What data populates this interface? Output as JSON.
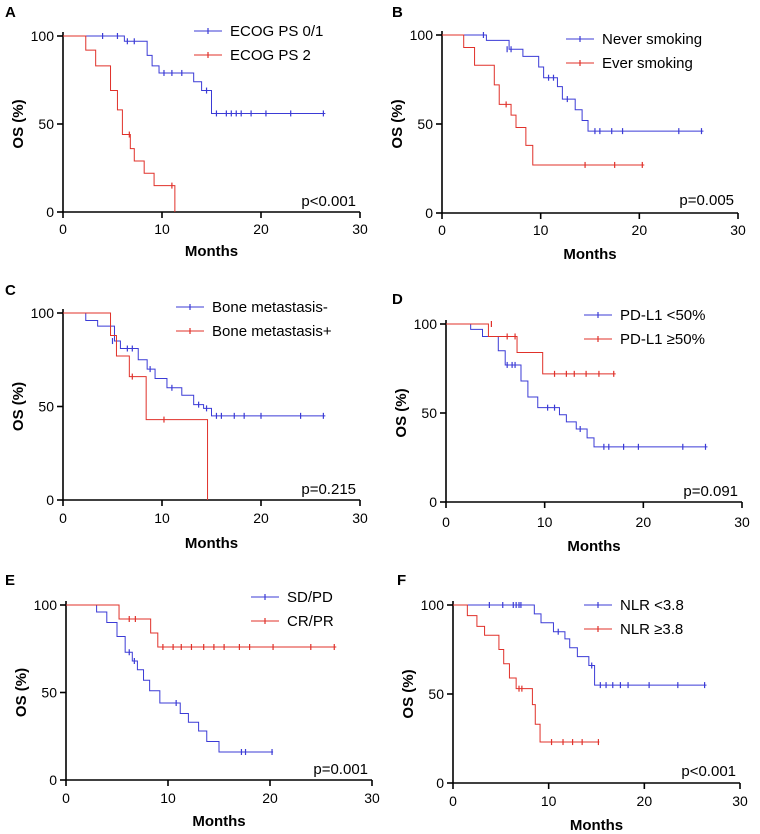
{
  "colors": {
    "blue": "#3b3bd6",
    "red": "#e0312a",
    "axis": "#000000"
  },
  "chart_data": [
    {
      "type": "line",
      "panel": "A",
      "title": "",
      "xlabel": "Months",
      "ylabel": "OS (%)",
      "xlim": [
        0,
        30
      ],
      "ylim": [
        0,
        100
      ],
      "xticks": [
        "0",
        "10",
        "20",
        "30"
      ],
      "yticks": [
        "0",
        "50",
        "100"
      ],
      "p_value": "p<0.001",
      "series": [
        {
          "name": "ECOG PS 0/1",
          "color": "blue",
          "steps": [
            [
              0,
              100
            ],
            [
              6.2,
              97
            ],
            [
              8.5,
              89
            ],
            [
              9,
              83
            ],
            [
              9.7,
              79
            ],
            [
              13.2,
              74
            ],
            [
              14,
              69
            ],
            [
              15,
              56
            ],
            [
              26.5,
              56
            ]
          ],
          "censors": [
            [
              4,
              100
            ],
            [
              5.5,
              100
            ],
            [
              6.5,
              97
            ],
            [
              7.2,
              97
            ],
            [
              10.2,
              79
            ],
            [
              11,
              79
            ],
            [
              12,
              79
            ],
            [
              14.5,
              69
            ],
            [
              15.5,
              56
            ],
            [
              16.5,
              56
            ],
            [
              17,
              56
            ],
            [
              17.5,
              56
            ],
            [
              18,
              56
            ],
            [
              19,
              56
            ],
            [
              20.5,
              56
            ],
            [
              23,
              56
            ],
            [
              26.3,
              56
            ]
          ]
        },
        {
          "name": "ECOG PS 2",
          "color": "red",
          "steps": [
            [
              0,
              100
            ],
            [
              2.3,
              92
            ],
            [
              3.3,
              83
            ],
            [
              4.8,
              69
            ],
            [
              5.5,
              58
            ],
            [
              6,
              44
            ],
            [
              6.8,
              36
            ],
            [
              7.2,
              29
            ],
            [
              8.2,
              22
            ],
            [
              9.2,
              15
            ],
            [
              11.3,
              0
            ]
          ],
          "censors": [
            [
              6.7,
              44
            ],
            [
              11,
              15
            ]
          ]
        }
      ]
    },
    {
      "type": "line",
      "panel": "B",
      "title": "",
      "xlabel": "Months",
      "ylabel": "OS (%)",
      "xlim": [
        0,
        30
      ],
      "ylim": [
        0,
        100
      ],
      "xticks": [
        "0",
        "10",
        "20",
        "30"
      ],
      "yticks": [
        "0",
        "50",
        "100"
      ],
      "p_value": "p=0.005",
      "series": [
        {
          "name": "Never smoking",
          "color": "blue",
          "steps": [
            [
              0,
              100
            ],
            [
              4.5,
              97
            ],
            [
              6.8,
              92
            ],
            [
              8.2,
              88
            ],
            [
              9.8,
              82
            ],
            [
              10.3,
              76
            ],
            [
              11.7,
              71
            ],
            [
              12.2,
              64
            ],
            [
              13.5,
              58
            ],
            [
              14.2,
              52
            ],
            [
              14.8,
              46
            ],
            [
              26.5,
              46
            ]
          ],
          "censors": [
            [
              4.2,
              100
            ],
            [
              6.6,
              92
            ],
            [
              7,
              92
            ],
            [
              10.8,
              76
            ],
            [
              11.3,
              76
            ],
            [
              12.7,
              64
            ],
            [
              15.5,
              46
            ],
            [
              16,
              46
            ],
            [
              17.2,
              46
            ],
            [
              18.3,
              46
            ],
            [
              24,
              46
            ],
            [
              26.3,
              46
            ]
          ]
        },
        {
          "name": "Ever smoking",
          "color": "red",
          "steps": [
            [
              0,
              100
            ],
            [
              2.2,
              93
            ],
            [
              3.3,
              83
            ],
            [
              5.3,
              72
            ],
            [
              5.8,
              61
            ],
            [
              7,
              55
            ],
            [
              7.5,
              48
            ],
            [
              8.5,
              38
            ],
            [
              9.2,
              27
            ],
            [
              20.5,
              27
            ]
          ],
          "censors": [
            [
              6.5,
              61
            ],
            [
              14.5,
              27
            ],
            [
              17.5,
              27
            ],
            [
              20.3,
              27
            ]
          ]
        }
      ]
    },
    {
      "type": "line",
      "panel": "C",
      "title": "",
      "xlabel": "Months",
      "ylabel": "OS (%)",
      "xlim": [
        0,
        30
      ],
      "ylim": [
        0,
        100
      ],
      "xticks": [
        "0",
        "10",
        "20",
        "30"
      ],
      "yticks": [
        "0",
        "50",
        "100"
      ],
      "p_value": "p=0.215",
      "series": [
        {
          "name": "Bone metastasis-",
          "color": "blue",
          "steps": [
            [
              0,
              100
            ],
            [
              2.3,
              96
            ],
            [
              3.5,
              93
            ],
            [
              5.2,
              85
            ],
            [
              5.8,
              81
            ],
            [
              7.6,
              75
            ],
            [
              8.5,
              70
            ],
            [
              9.3,
              65
            ],
            [
              10.5,
              60
            ],
            [
              12,
              56
            ],
            [
              13.2,
              51
            ],
            [
              14.2,
              49
            ],
            [
              15,
              45
            ],
            [
              26.5,
              45
            ]
          ],
          "censors": [
            [
              5,
              85
            ],
            [
              6.5,
              81
            ],
            [
              7,
              81
            ],
            [
              8.8,
              70
            ],
            [
              11,
              60
            ],
            [
              13.7,
              51
            ],
            [
              14.5,
              49
            ],
            [
              15.5,
              45
            ],
            [
              16,
              45
            ],
            [
              17.3,
              45
            ],
            [
              18.3,
              45
            ],
            [
              20,
              45
            ],
            [
              24,
              45
            ],
            [
              26.3,
              45
            ]
          ]
        },
        {
          "name": "Bone metastasis+",
          "color": "red",
          "steps": [
            [
              0,
              100
            ],
            [
              4.8,
              88
            ],
            [
              5.4,
              77
            ],
            [
              6.7,
              66
            ],
            [
              8.4,
              43
            ],
            [
              14.6,
              0
            ]
          ],
          "censors": [
            [
              7,
              66
            ],
            [
              10.2,
              43
            ]
          ]
        }
      ]
    },
    {
      "type": "line",
      "panel": "D",
      "title": "",
      "xlabel": "Months",
      "ylabel": "OS (%)",
      "xlim": [
        0,
        30
      ],
      "ylim": [
        0,
        100
      ],
      "xticks": [
        "0",
        "10",
        "20",
        "30"
      ],
      "yticks": [
        "0",
        "50",
        "100"
      ],
      "p_value": "p=0.091",
      "series": [
        {
          "name": "PD-L1 <50%",
          "color": "blue",
          "steps": [
            [
              0,
              100
            ],
            [
              2.5,
              97
            ],
            [
              3.7,
              93
            ],
            [
              5.3,
              85
            ],
            [
              6,
              77
            ],
            [
              7.6,
              68
            ],
            [
              8.3,
              59
            ],
            [
              9.3,
              53
            ],
            [
              11.5,
              49
            ],
            [
              12.2,
              45
            ],
            [
              13.2,
              41
            ],
            [
              14.3,
              36
            ],
            [
              15,
              31
            ],
            [
              26.5,
              31
            ]
          ],
          "censors": [
            [
              6.2,
              77
            ],
            [
              6.7,
              77
            ],
            [
              7,
              77
            ],
            [
              10.3,
              53
            ],
            [
              11,
              53
            ],
            [
              13.6,
              41
            ],
            [
              16,
              31
            ],
            [
              16.5,
              31
            ],
            [
              18,
              31
            ],
            [
              19.5,
              31
            ],
            [
              24,
              31
            ],
            [
              26.3,
              31
            ]
          ]
        },
        {
          "name": "PD-L1 ≥50%",
          "color": "red",
          "steps": [
            [
              0,
              100
            ],
            [
              4.3,
              93
            ],
            [
              7.2,
              84
            ],
            [
              9.8,
              72
            ],
            [
              17.2,
              72
            ]
          ],
          "censors": [
            [
              4.6,
              100
            ],
            [
              6.2,
              93
            ],
            [
              7,
              93
            ],
            [
              11,
              72
            ],
            [
              12.2,
              72
            ],
            [
              13,
              72
            ],
            [
              14.2,
              72
            ],
            [
              15.5,
              72
            ],
            [
              17,
              72
            ]
          ]
        }
      ]
    },
    {
      "type": "line",
      "panel": "E",
      "title": "",
      "xlabel": "Months",
      "ylabel": "OS (%)",
      "xlim": [
        0,
        30
      ],
      "ylim": [
        0,
        100
      ],
      "xticks": [
        "0",
        "10",
        "20",
        "30"
      ],
      "yticks": [
        "0",
        "50",
        "100"
      ],
      "p_value": "p=0.001",
      "series": [
        {
          "name": "SD/PD",
          "color": "blue",
          "steps": [
            [
              0,
              100
            ],
            [
              3,
              96
            ],
            [
              4,
              90
            ],
            [
              5,
              82
            ],
            [
              5.8,
              73
            ],
            [
              6.5,
              68
            ],
            [
              7,
              63
            ],
            [
              7.6,
              57
            ],
            [
              8.2,
              51
            ],
            [
              9.2,
              44
            ],
            [
              11.2,
              38
            ],
            [
              12,
              33
            ],
            [
              13,
              28
            ],
            [
              13.8,
              22
            ],
            [
              15,
              16
            ],
            [
              20.3,
              16
            ]
          ],
          "censors": [
            [
              6.2,
              73
            ],
            [
              6.7,
              68
            ],
            [
              10.8,
              44
            ],
            [
              17.2,
              16
            ],
            [
              17.6,
              16
            ],
            [
              20.2,
              16
            ]
          ]
        },
        {
          "name": "CR/PR",
          "color": "red",
          "steps": [
            [
              0,
              100
            ],
            [
              5.2,
              92
            ],
            [
              8.3,
              84
            ],
            [
              9,
              76
            ],
            [
              26.5,
              76
            ]
          ],
          "censors": [
            [
              6.2,
              92
            ],
            [
              6.8,
              92
            ],
            [
              9.5,
              76
            ],
            [
              10.5,
              76
            ],
            [
              11.3,
              76
            ],
            [
              12.3,
              76
            ],
            [
              13.5,
              76
            ],
            [
              14.5,
              76
            ],
            [
              15.5,
              76
            ],
            [
              17,
              76
            ],
            [
              18,
              76
            ],
            [
              20.3,
              76
            ],
            [
              24,
              76
            ],
            [
              26.3,
              76
            ]
          ]
        }
      ]
    },
    {
      "type": "line",
      "panel": "F",
      "title": "",
      "xlabel": "Months",
      "ylabel": "OS (%)",
      "xlim": [
        0,
        30
      ],
      "ylim": [
        0,
        100
      ],
      "xticks": [
        "0",
        "10",
        "20",
        "30"
      ],
      "yticks": [
        "0",
        "50",
        "100"
      ],
      "p_value": "p<0.001",
      "series": [
        {
          "name": "NLR <3.8",
          "color": "blue",
          "steps": [
            [
              0,
              100
            ],
            [
              8.5,
              95
            ],
            [
              9.2,
              90
            ],
            [
              10.5,
              85
            ],
            [
              11.7,
              81
            ],
            [
              12.2,
              76
            ],
            [
              13,
              71
            ],
            [
              14.2,
              66
            ],
            [
              14.8,
              55
            ],
            [
              26.5,
              55
            ]
          ],
          "censors": [
            [
              3.8,
              100
            ],
            [
              5.2,
              100
            ],
            [
              6.3,
              100
            ],
            [
              6.6,
              100
            ],
            [
              6.9,
              100
            ],
            [
              7.1,
              100
            ],
            [
              11,
              85
            ],
            [
              14.5,
              66
            ],
            [
              15.4,
              55
            ],
            [
              16,
              55
            ],
            [
              16.7,
              55
            ],
            [
              17.5,
              55
            ],
            [
              18.3,
              55
            ],
            [
              20.5,
              55
            ],
            [
              23.5,
              55
            ],
            [
              26.3,
              55
            ]
          ]
        },
        {
          "name": "NLR ≥3.8",
          "color": "red",
          "steps": [
            [
              0,
              100
            ],
            [
              1.5,
              94
            ],
            [
              2.5,
              88
            ],
            [
              3.3,
              83
            ],
            [
              4.8,
              75
            ],
            [
              5.3,
              67
            ],
            [
              5.9,
              59
            ],
            [
              6.6,
              53
            ],
            [
              8.3,
              44
            ],
            [
              8.6,
              33
            ],
            [
              9.1,
              23
            ],
            [
              15.3,
              23
            ]
          ],
          "censors": [
            [
              6.9,
              53
            ],
            [
              7.2,
              53
            ],
            [
              10.3,
              23
            ],
            [
              11.5,
              23
            ],
            [
              12.5,
              23
            ],
            [
              13.5,
              23
            ],
            [
              15.2,
              23
            ]
          ]
        }
      ]
    }
  ]
}
